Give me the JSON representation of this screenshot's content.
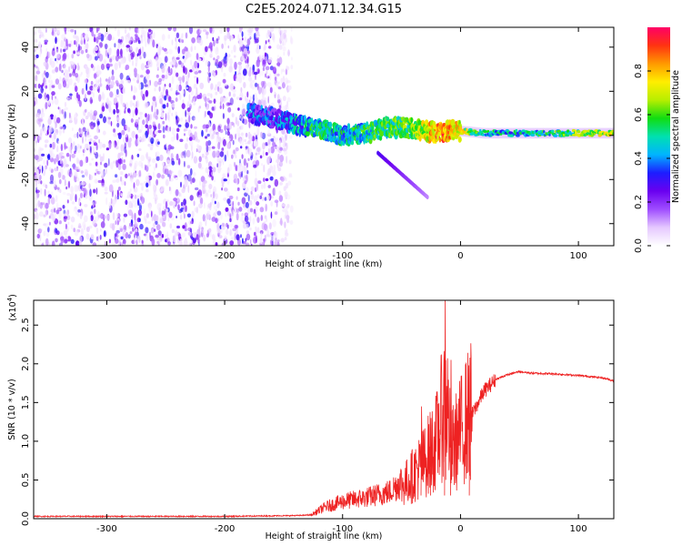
{
  "figure": {
    "title": "C2E5.2024.071.12.34.G15"
  },
  "chart_data": [
    {
      "type": "heatmap",
      "xlabel": "Height of straight line (km)",
      "ylabel": "Frequency (Hz)",
      "xlim": [
        -362,
        130
      ],
      "ylim": [
        -50,
        49
      ],
      "xticks": [
        -300,
        -200,
        -100,
        0,
        100
      ],
      "yticks": [
        -40,
        -20,
        0,
        20,
        40
      ],
      "colorbar": {
        "label": "Normalized spectral amplitude",
        "range": [
          0,
          1
        ],
        "ticks": [
          "0.0",
          "0.2",
          "0.4",
          "0.6",
          "0.8"
        ],
        "colormap": [
          "#ffffff",
          "#e5c8ff",
          "#9f4dff",
          "#6a00f0",
          "#1d1dff",
          "#00b4ff",
          "#00e0b0",
          "#11dd11",
          "#b7ee00",
          "#ffee00",
          "#ff9900",
          "#ff3311",
          "#ff0066"
        ]
      },
      "features": {
        "noise_region_x": [
          -362,
          -143
        ],
        "noise_region_y": [
          -50,
          49
        ],
        "signal_trace": {
          "x": [
            -180,
            -160,
            -140,
            -120,
            -100,
            -80,
            -60,
            -40,
            -20,
            -10,
            0,
            20,
            60,
            100,
            130
          ],
          "freq": [
            10,
            8,
            5,
            3,
            0,
            1,
            4,
            3,
            1,
            2,
            2,
            1,
            1,
            1,
            1
          ],
          "amplitude": [
            0.32,
            0.3,
            0.4,
            0.5,
            0.45,
            0.5,
            0.55,
            0.55,
            0.85,
            0.8,
            0.7,
            0.45,
            0.45,
            0.6,
            0.7
          ]
        },
        "tail_x": [
          -70,
          -28
        ],
        "tail_freq": [
          -8,
          -28
        ]
      }
    },
    {
      "type": "line",
      "xlabel": "Height of straight line (km)",
      "ylabel": "SNR (10 * v/v)",
      "y_multiplier_label": "(x10",
      "y_multiplier_exponent": "4",
      "xlim": [
        -362,
        130
      ],
      "ylim": [
        0,
        2.82
      ],
      "xticks": [
        -300,
        -200,
        -100,
        0,
        100
      ],
      "yticks": [
        "0.0",
        "0.5",
        "1.0",
        "1.5",
        "2.0",
        "2.5"
      ],
      "color": "#ee2222",
      "series": [
        {
          "x": [
            -362,
            -300,
            -200,
            -140,
            -125,
            -115,
            -100,
            -80,
            -60,
            -45,
            -30,
            -20,
            -12,
            -8,
            0,
            10,
            20,
            30,
            40,
            50,
            60,
            80,
            100,
            120,
            130
          ],
          "y": [
            0.03,
            0.03,
            0.03,
            0.04,
            0.05,
            0.12,
            0.18,
            0.22,
            0.28,
            0.45,
            0.7,
            0.95,
            1.5,
            0.8,
            1.05,
            1.35,
            1.65,
            1.8,
            1.86,
            1.9,
            1.88,
            1.87,
            1.85,
            1.82,
            1.78
          ],
          "spikes": [
            {
              "x": -13,
              "y": 2.82
            },
            {
              "x": -8,
              "y": 2.05
            },
            {
              "x": -25,
              "y": 1.3
            },
            {
              "x": 8,
              "y": 2.08
            },
            {
              "x": -33,
              "y": 1.45
            }
          ]
        }
      ]
    }
  ]
}
